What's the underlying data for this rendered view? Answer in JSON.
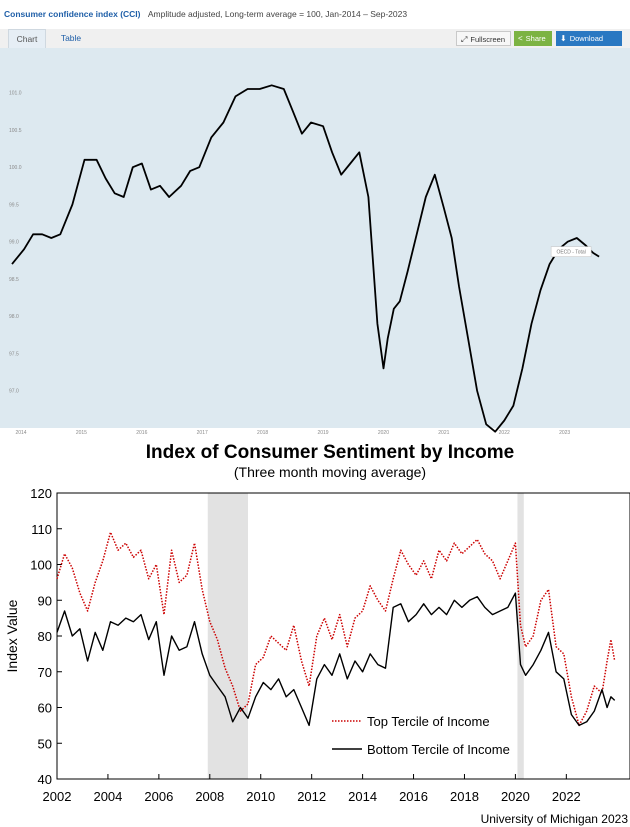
{
  "top_widget": {
    "title": "Consumer confidence index (CCI)",
    "subtitle": "Amplitude adjusted, Long-term average = 100, Jan-2014 – Sep-2023",
    "tabs": [
      "Chart",
      "Table"
    ],
    "buttons": {
      "fullscreen": "Fullscreen",
      "share": "Share",
      "download": "Download"
    },
    "icons": {
      "fullscreen": "fullscreen-icon",
      "share": "share-icon",
      "download": "download-icon"
    },
    "colors": {
      "title": "#1f5fa8",
      "share_bg": "#7cb342",
      "download_bg": "#2a78c2",
      "plot_bg": "#dde9f0"
    },
    "tooltip_label": "OECD - Total"
  },
  "chart_data": [
    {
      "type": "line",
      "title": "Consumer confidence index (CCI)",
      "subtitle": "Amplitude adjusted, Long-term average = 100, Jan-2014 – Sep-2023",
      "ylim": [
        96.5,
        101.6
      ],
      "yticks": [
        97.0,
        97.5,
        98.0,
        98.5,
        99.0,
        99.5,
        100.0,
        100.5,
        101.0
      ],
      "ytick_labels": [
        "97.0",
        "97.5",
        "98.0",
        "98.5",
        "99.0",
        "99.5",
        "100.0",
        "100.5",
        "101.0"
      ],
      "xlim": [
        2014.0,
        2023.9
      ],
      "xticks": [
        2014,
        2015,
        2016,
        2017,
        2018,
        2019,
        2020,
        2021,
        2022,
        2023
      ],
      "xtick_labels": [
        "2014",
        "2015",
        "2016",
        "2017",
        "2018",
        "2019",
        "2020",
        "2021",
        "2022",
        "2023"
      ],
      "grid": false,
      "series": [
        {
          "name": "OECD - Total",
          "color": "#000000",
          "x": [
            2014.0,
            2014.2,
            2014.35,
            2014.5,
            2014.65,
            2014.8,
            2015.0,
            2015.2,
            2015.4,
            2015.55,
            2015.7,
            2015.85,
            2016.0,
            2016.15,
            2016.3,
            2016.45,
            2016.6,
            2016.8,
            2016.95,
            2017.1,
            2017.3,
            2017.5,
            2017.7,
            2017.9,
            2018.1,
            2018.3,
            2018.5,
            2018.65,
            2018.8,
            2018.95,
            2019.15,
            2019.3,
            2019.45,
            2019.6,
            2019.75,
            2019.9,
            2020.05,
            2020.15,
            2020.22,
            2020.32,
            2020.42,
            2020.55,
            2020.7,
            2020.85,
            2021.0,
            2021.15,
            2021.28,
            2021.4,
            2021.55,
            2021.7,
            2021.85,
            2022.0,
            2022.15,
            2022.3,
            2022.45,
            2022.6,
            2022.75,
            2022.9,
            2023.05,
            2023.2,
            2023.35,
            2023.5,
            2023.62,
            2023.72
          ],
          "values": [
            98.7,
            98.9,
            99.1,
            99.1,
            99.05,
            99.1,
            99.5,
            100.1,
            100.1,
            99.85,
            99.65,
            99.6,
            100.0,
            100.05,
            99.7,
            99.75,
            99.6,
            99.75,
            99.95,
            100.0,
            100.4,
            100.6,
            100.95,
            101.05,
            101.05,
            101.1,
            101.05,
            100.75,
            100.45,
            100.6,
            100.55,
            100.2,
            99.9,
            100.05,
            100.2,
            99.6,
            97.9,
            97.3,
            97.7,
            98.1,
            98.2,
            98.6,
            99.1,
            99.6,
            99.9,
            99.45,
            99.05,
            98.4,
            97.7,
            97.0,
            96.55,
            96.45,
            96.6,
            96.8,
            97.3,
            97.9,
            98.35,
            98.7,
            98.9,
            99.0,
            99.05,
            98.95,
            98.85,
            98.8
          ]
        }
      ]
    },
    {
      "type": "line",
      "title": "Index of Consumer Sentiment by Income",
      "subtitle": "(Three month moving average)",
      "xlabel": "",
      "ylabel": "Index Value",
      "ylim": [
        40,
        120
      ],
      "yticks": [
        40,
        50,
        60,
        70,
        80,
        90,
        100,
        110,
        120
      ],
      "xlim": [
        2002,
        2024.5
      ],
      "xticks": [
        2002,
        2004,
        2006,
        2008,
        2010,
        2012,
        2014,
        2016,
        2018,
        2020,
        2022
      ],
      "grid": false,
      "source": "University of Michigan 2023",
      "shaded_periods": [
        [
          2007.92,
          2009.5
        ],
        [
          2020.08,
          2020.33
        ]
      ],
      "legend_position": "bottom-center",
      "series": [
        {
          "name": "Top Tercile of Income",
          "color": "#cc0000",
          "style": "dotted",
          "x": [
            2002.0,
            2002.3,
            2002.6,
            2002.9,
            2003.2,
            2003.5,
            2003.8,
            2004.1,
            2004.4,
            2004.7,
            2005.0,
            2005.3,
            2005.6,
            2005.9,
            2006.2,
            2006.5,
            2006.8,
            2007.1,
            2007.4,
            2007.7,
            2008.0,
            2008.3,
            2008.6,
            2008.9,
            2009.2,
            2009.5,
            2009.8,
            2010.1,
            2010.4,
            2010.7,
            2011.0,
            2011.3,
            2011.6,
            2011.9,
            2012.2,
            2012.5,
            2012.8,
            2013.1,
            2013.4,
            2013.7,
            2014.0,
            2014.3,
            2014.6,
            2014.9,
            2015.2,
            2015.5,
            2015.8,
            2016.1,
            2016.4,
            2016.7,
            2017.0,
            2017.3,
            2017.6,
            2017.9,
            2018.2,
            2018.5,
            2018.8,
            2019.1,
            2019.4,
            2019.7,
            2020.0,
            2020.2,
            2020.4,
            2020.7,
            2021.0,
            2021.3,
            2021.6,
            2021.9,
            2022.2,
            2022.5,
            2022.8,
            2023.1,
            2023.4,
            2023.6,
            2023.75,
            2023.9
          ],
          "values": [
            96,
            103,
            99,
            92,
            87,
            95,
            101,
            109,
            104,
            106,
            102,
            104,
            96,
            100,
            86,
            104,
            95,
            97,
            106,
            93,
            84,
            79,
            71,
            66,
            59,
            61,
            72,
            74,
            80,
            78,
            76,
            83,
            73,
            66,
            80,
            85,
            79,
            86,
            77,
            85,
            87,
            94,
            90,
            87,
            96,
            104,
            100,
            97,
            101,
            96,
            104,
            101,
            106,
            103,
            105,
            107,
            103,
            101,
            96,
            101,
            106,
            83,
            77,
            80,
            90,
            93,
            77,
            75,
            63,
            55,
            59,
            66,
            64,
            73,
            79,
            73
          ]
        },
        {
          "name": "Bottom Tercile of Income",
          "color": "#000000",
          "style": "solid",
          "x": [
            2002.0,
            2002.3,
            2002.6,
            2002.9,
            2003.2,
            2003.5,
            2003.8,
            2004.1,
            2004.4,
            2004.7,
            2005.0,
            2005.3,
            2005.6,
            2005.9,
            2006.2,
            2006.5,
            2006.8,
            2007.1,
            2007.4,
            2007.7,
            2008.0,
            2008.3,
            2008.6,
            2008.9,
            2009.2,
            2009.5,
            2009.8,
            2010.1,
            2010.4,
            2010.7,
            2011.0,
            2011.3,
            2011.6,
            2011.9,
            2012.2,
            2012.5,
            2012.8,
            2013.1,
            2013.4,
            2013.7,
            2014.0,
            2014.3,
            2014.6,
            2014.9,
            2015.2,
            2015.5,
            2015.8,
            2016.1,
            2016.4,
            2016.7,
            2017.0,
            2017.3,
            2017.6,
            2017.9,
            2018.2,
            2018.5,
            2018.8,
            2019.1,
            2019.4,
            2019.7,
            2020.0,
            2020.2,
            2020.4,
            2020.7,
            2021.0,
            2021.3,
            2021.6,
            2021.9,
            2022.2,
            2022.5,
            2022.8,
            2023.1,
            2023.4,
            2023.6,
            2023.75,
            2023.9
          ],
          "values": [
            81,
            87,
            80,
            82,
            73,
            81,
            76,
            84,
            83,
            85,
            84,
            86,
            79,
            84,
            69,
            80,
            76,
            77,
            84,
            75,
            69,
            66,
            63,
            56,
            60,
            57,
            63,
            67,
            65,
            68,
            63,
            65,
            60,
            55,
            68,
            72,
            69,
            75,
            68,
            73,
            70,
            75,
            72,
            71,
            88,
            89,
            84,
            86,
            89,
            86,
            88,
            86,
            90,
            88,
            90,
            91,
            88,
            86,
            87,
            88,
            92,
            72,
            69,
            72,
            76,
            81,
            70,
            68,
            58,
            55,
            56,
            59,
            65,
            60,
            63,
            62
          ]
        }
      ]
    }
  ]
}
